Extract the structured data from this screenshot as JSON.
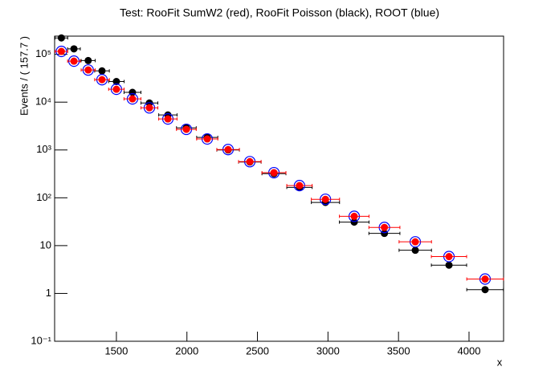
{
  "chart_data": {
    "type": "scatter",
    "title": "Test: RooFit SumW2 (red), RooFit Poisson (black), ROOT (blue)",
    "xlabel": "x",
    "ylabel": "Events / ( 157.7 )",
    "x": [
      1110,
      1199,
      1300,
      1398,
      1500,
      1614,
      1734,
      1865,
      1996,
      2144,
      2292,
      2446,
      2617,
      2798,
      2982,
      3186,
      3400,
      3619,
      3858,
      4114
    ],
    "xerr": [
      45,
      45,
      50,
      52,
      55,
      60,
      60,
      65,
      70,
      75,
      80,
      80,
      85,
      90,
      100,
      105,
      110,
      115,
      125,
      130
    ],
    "series": [
      {
        "name": "RooFit Poisson",
        "color": "#000000",
        "marker": "filled",
        "values": [
          220000,
          130000,
          74000,
          45000,
          27000,
          16000,
          9600,
          5400,
          2900,
          1830,
          1000,
          560,
          320,
          165,
          80,
          31,
          18,
          8,
          3.9,
          1.2
        ]
      },
      {
        "name": "ROOT",
        "color": "#0000ff",
        "marker": "open",
        "values": [
          115000,
          72000,
          47000,
          29500,
          18600,
          11700,
          7600,
          4450,
          2700,
          1700,
          1020,
          570,
          335,
          180,
          93,
          41,
          24,
          12,
          5.9,
          2.0
        ]
      },
      {
        "name": "RooFit SumW2",
        "color": "#ff0000",
        "marker": "filled",
        "values": [
          115000,
          72000,
          47000,
          29500,
          18600,
          11700,
          7600,
          4450,
          2700,
          1700,
          1020,
          570,
          335,
          180,
          93,
          41,
          24,
          12,
          5.9,
          2.0
        ]
      }
    ],
    "xlim": [
      1062,
      4245
    ],
    "xticks": [
      1500,
      2000,
      2500,
      3000,
      3500,
      4000
    ],
    "ylim": [
      0.1,
      240000
    ],
    "log_y": true,
    "yticks": [
      {
        "value": 0.1,
        "label": "10⁻¹"
      },
      1,
      10,
      {
        "value": 100,
        "label": "10²"
      },
      {
        "value": 1000,
        "label": "10³"
      },
      {
        "value": 10000,
        "label": "10⁴"
      },
      {
        "value": 100000,
        "label": "10⁵"
      }
    ]
  }
}
